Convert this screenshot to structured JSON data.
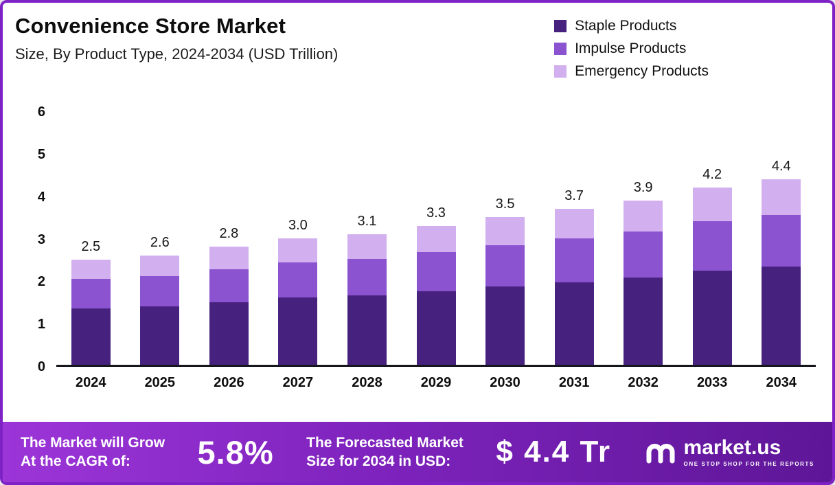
{
  "chart_data": {
    "type": "bar",
    "stacked": true,
    "title": "Convenience Store Market",
    "subtitle": "Size, By Product Type, 2024-2034 (USD Trillion)",
    "categories": [
      "2024",
      "2025",
      "2026",
      "2027",
      "2028",
      "2029",
      "2030",
      "2031",
      "2032",
      "2033",
      "2034"
    ],
    "series": [
      {
        "name": "Staple Products",
        "color": "#47217e",
        "values": [
          1.33,
          1.38,
          1.48,
          1.59,
          1.64,
          1.75,
          1.86,
          1.96,
          2.07,
          2.23,
          2.33
        ]
      },
      {
        "name": "Impulse Products",
        "color": "#8b53d0",
        "values": [
          0.7,
          0.73,
          0.78,
          0.84,
          0.87,
          0.92,
          0.98,
          1.04,
          1.09,
          1.18,
          1.23
        ]
      },
      {
        "name": "Emergency Products",
        "color": "#d2afef",
        "values": [
          0.47,
          0.49,
          0.54,
          0.57,
          0.59,
          0.63,
          0.66,
          0.7,
          0.74,
          0.79,
          0.84
        ]
      }
    ],
    "totals": [
      2.5,
      2.6,
      2.8,
      3.0,
      3.1,
      3.3,
      3.5,
      3.7,
      3.9,
      4.2,
      4.4
    ],
    "total_labels": [
      "2.5",
      "2.6",
      "2.8",
      "3.0",
      "3.1",
      "3.3",
      "3.5",
      "3.7",
      "3.9",
      "4.2",
      "4.4"
    ],
    "ylim": [
      0,
      6
    ],
    "yticks": [
      0,
      1,
      2,
      3,
      4,
      5,
      6
    ],
    "legend_position": "top-right",
    "grid": false
  },
  "footer": {
    "left_line1": "The Market will Grow",
    "left_line2": "At the CAGR of:",
    "cagr": "5.8%",
    "mid_line1": "The Forecasted Market",
    "mid_line2": "Size for 2034 in USD:",
    "value": "$ 4.4 Tr",
    "brand": "market.us",
    "tagline": "ONE STOP SHOP FOR THE REPORTS"
  }
}
